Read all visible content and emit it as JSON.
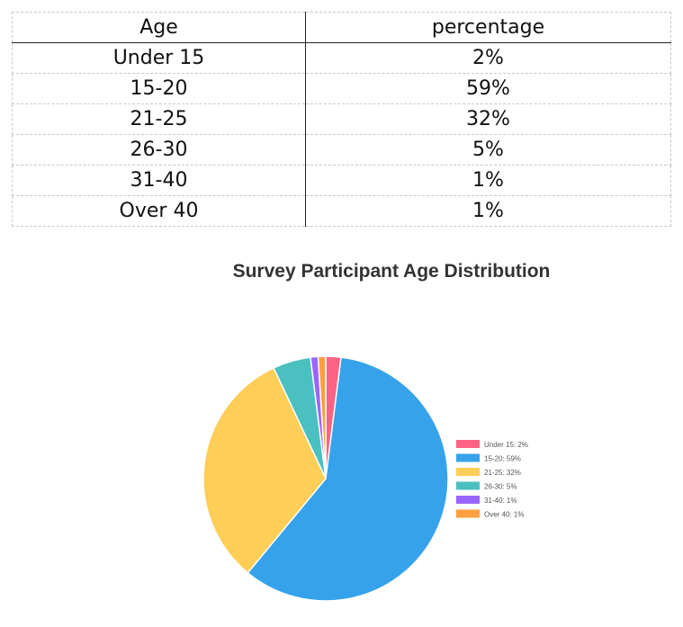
{
  "table": {
    "headers": [
      "Age",
      "percentage"
    ],
    "rows": [
      [
        "Under 15",
        "2%"
      ],
      [
        "15-20",
        "59%"
      ],
      [
        "21-25",
        "32%"
      ],
      [
        "26-30",
        "5%"
      ],
      [
        "31-40",
        "1%"
      ],
      [
        "Over 40",
        "1%"
      ]
    ]
  },
  "chart_data": {
    "type": "pie",
    "title": "Survey Participant Age Distribution",
    "categories": [
      "Under 15",
      "15-20",
      "21-25",
      "26-30",
      "31-40",
      "Over 40"
    ],
    "values": [
      2,
      59,
      32,
      5,
      1,
      1
    ],
    "legend_labels": [
      "Under 15: 2%",
      "15-20: 59%",
      "21-25: 32%",
      "26-30: 5%",
      "31-40: 1%",
      "Over 40: 1%"
    ],
    "colors": [
      "#ff6384",
      "#36a2eb",
      "#ffce56",
      "#4bc0c0",
      "#9966ff",
      "#ff9f40"
    ],
    "legend_position": "right"
  }
}
